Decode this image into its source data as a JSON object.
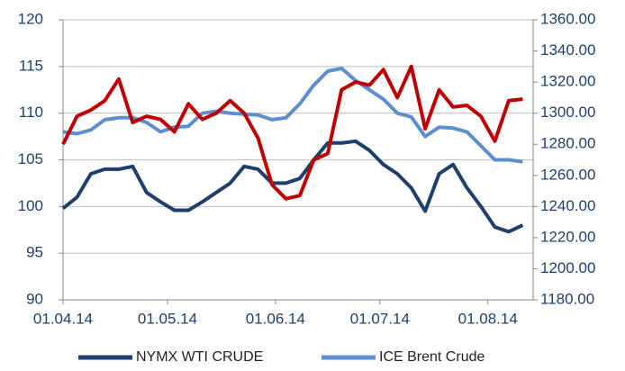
{
  "chart_data": {
    "type": "line",
    "x": [
      "01.04.14",
      "05.04.14",
      "09.04.14",
      "13.04.14",
      "17.04.14",
      "21.04.14",
      "25.04.14",
      "29.04.14",
      "03.05.14",
      "07.05.14",
      "11.05.14",
      "15.05.14",
      "19.05.14",
      "23.05.14",
      "27.05.14",
      "31.05.14",
      "04.06.14",
      "08.06.14",
      "12.06.14",
      "16.06.14",
      "20.06.14",
      "24.06.14",
      "28.06.14",
      "02.07.14",
      "06.07.14",
      "10.07.14",
      "14.07.14",
      "18.07.14",
      "22.07.14",
      "26.07.14",
      "30.07.14",
      "03.08.14",
      "07.08.14",
      "11.08.14"
    ],
    "series": [
      {
        "name": "NYMX WTI CRUDE",
        "color": "#1f3f6e",
        "values": [
          99.8,
          101,
          103.5,
          104,
          104,
          104.3,
          101.5,
          100.5,
          99.6,
          99.6,
          100.5,
          101.5,
          102.5,
          104.3,
          104,
          102.5,
          102.5,
          103,
          105,
          106.8,
          106.8,
          107,
          106,
          104.5,
          103.5,
          102,
          99.5,
          103.5,
          104.5,
          102,
          100,
          97.8,
          97.3,
          98
        ]
      },
      {
        "name": "ICE Brent Crude",
        "color": "#5b8fd0",
        "values": [
          108,
          107.8,
          108.2,
          109.3,
          109.5,
          109.5,
          109,
          108,
          108.5,
          108.6,
          110,
          110.2,
          110,
          109.9,
          109.8,
          109.3,
          109.5,
          111,
          113,
          114.5,
          114.8,
          113.5,
          112.5,
          111.5,
          110,
          109.6,
          107.5,
          108.5,
          108.4,
          108,
          106.5,
          105,
          105,
          104.8
        ]
      },
      {
        "color": "#c00000",
        "axis": "y2",
        "values": [
          1280,
          1298,
          1302,
          1308,
          1322,
          1294,
          1298,
          1296,
          1288,
          1306,
          1296,
          1300,
          1308,
          1300,
          1284,
          1254,
          1245,
          1247,
          1270,
          1274,
          1315,
          1320,
          1318,
          1328,
          1310,
          1330,
          1290,
          1315,
          1304,
          1305,
          1298,
          1282,
          1308,
          1309
        ]
      }
    ],
    "xlim": [
      "01.04.14",
      "14.08.14"
    ],
    "xticks": [
      "01.04.14",
      "01.05.14",
      "01.06.14",
      "01.07.14",
      "01.08.14"
    ],
    "ylim": [
      90,
      120
    ],
    "yticks": [
      90,
      95,
      100,
      105,
      110,
      115,
      120
    ],
    "y2lim": [
      1180,
      1360
    ],
    "y2ticks": [
      {
        "value": 1180,
        "label": "1180.00"
      },
      {
        "value": 1200,
        "label": "1200.00"
      },
      {
        "value": 1220,
        "label": "1220.00"
      },
      {
        "value": 1240,
        "label": "1240.00"
      },
      {
        "value": 1260,
        "label": "1260.00"
      },
      {
        "value": 1280,
        "label": "1280.00"
      },
      {
        "value": 1300,
        "label": "1300.00"
      },
      {
        "value": 1320,
        "label": "1320.00"
      },
      {
        "value": 1340,
        "label": "1340.00"
      },
      {
        "value": 1360,
        "label": "1360.00"
      }
    ],
    "grid": true,
    "legend": "bottom"
  }
}
